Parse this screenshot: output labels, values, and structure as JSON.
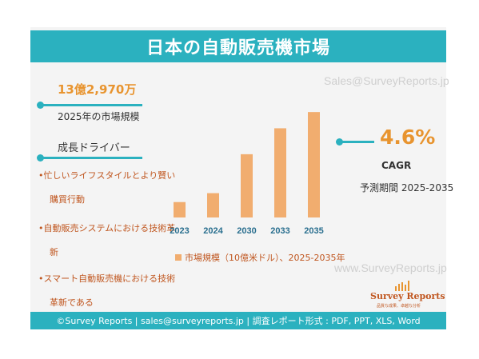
{
  "title": "日本の自動販売機市場",
  "watermark_email": "Sales@SurveyReports.jp",
  "watermark_url": "www.SurveyReports.jp",
  "market": {
    "value": "13億2,970万",
    "label": "2025年の市場規模"
  },
  "drivers": {
    "heading": "成長ドライバー",
    "items": [
      {
        "line1": "忙しいライフスタイルとより賢い",
        "line2": "購買行動"
      },
      {
        "line1": "自動販売システムにおける技術革",
        "line2": "新"
      },
      {
        "line1": "スマート自動販売機における技術",
        "line2": "革新である"
      }
    ]
  },
  "cagr": {
    "value": "4.6%",
    "label": "CAGR",
    "period": "予測期間 2025-2035"
  },
  "legend": "市場規模（10億米ドル）、2025-2035年",
  "logo": {
    "name": "Survey Reports",
    "tagline": "品質な成果、卓越な分析"
  },
  "footer": "©Survey Reports | sales@surveyreports.jp |  調査レポート形式 : PDF, PPT, XLS, Word",
  "colors": {
    "teal": "#2bb1bf",
    "orange_text": "#e8942f",
    "bar": "#f1ad6f",
    "driver_text": "#c0561f"
  },
  "chart_data": {
    "type": "bar",
    "categories": [
      "2023",
      "2024",
      "2030",
      "2033",
      "2035"
    ],
    "values": [
      0.95,
      1.5,
      3.9,
      5.5,
      6.5
    ],
    "ylim": [
      0,
      7
    ],
    "title": "",
    "xlabel": "",
    "ylabel": "",
    "legend": "市場規模（10億米ドル）、2025-2035年"
  }
}
